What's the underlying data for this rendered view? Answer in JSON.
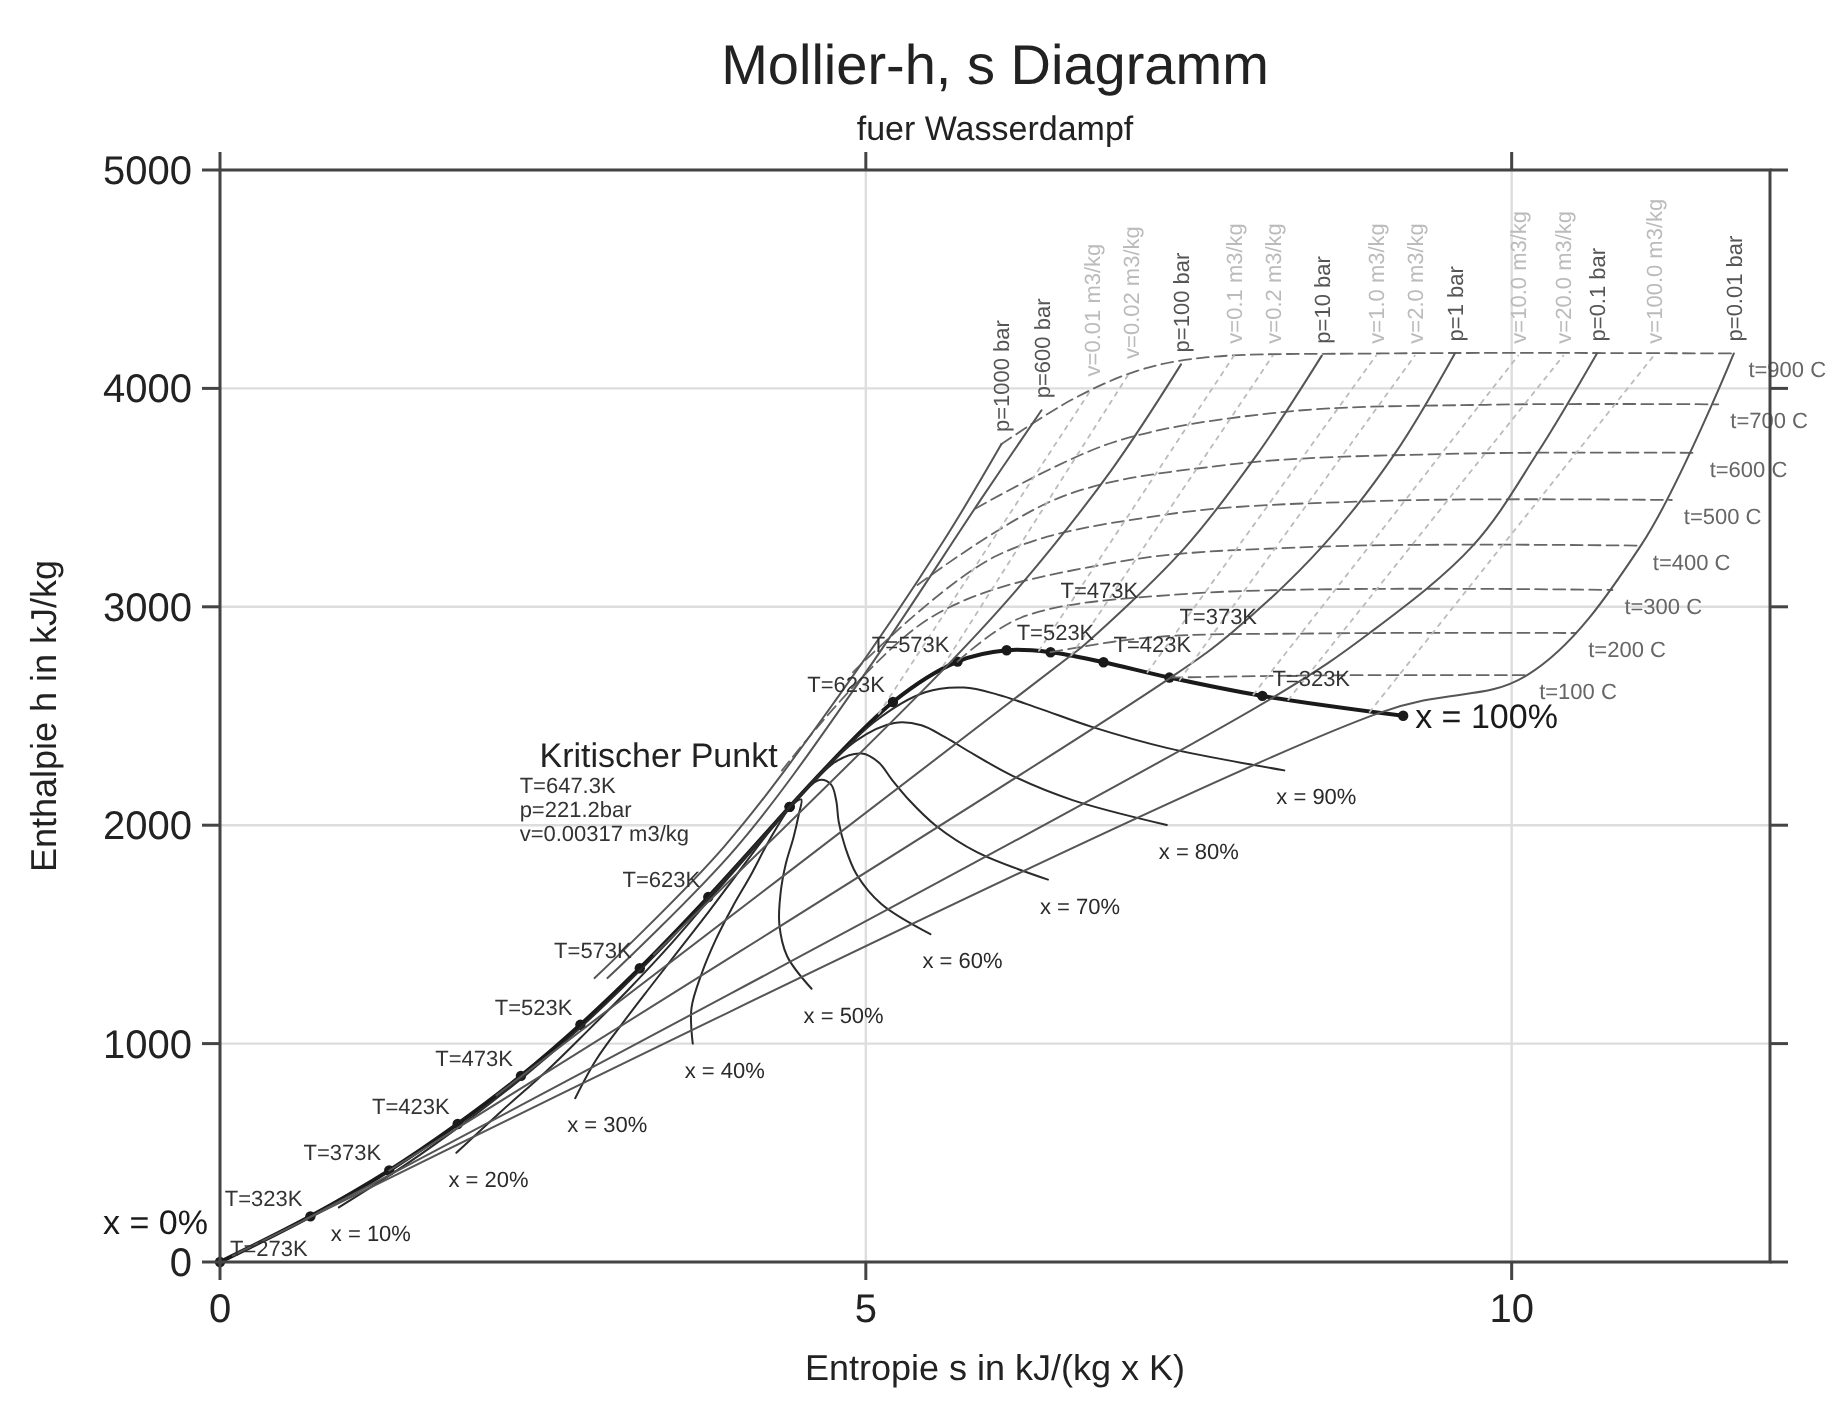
{
  "chart_data": {
    "type": "line",
    "title": "Mollier-h, s Diagramm",
    "subtitle": "fuer Wasserdampf",
    "xlabel": "Entropie s in kJ/(kg x K)",
    "ylabel": "Enthalpie h in kJ/kg",
    "xlim": [
      0,
      12
    ],
    "ylim": [
      0,
      5000
    ],
    "xticks": [
      0,
      5,
      10
    ],
    "yticks": [
      0,
      1000,
      2000,
      3000,
      4000,
      5000
    ],
    "grid": true,
    "annotations": [
      {
        "text": "Kritischer Punkt\nT=647.3K\np=221.2bar\nv=0.00317 m3/kg",
        "x": 4.41,
        "y": 2084
      },
      {
        "text": "T=623K",
        "x": 3.78,
        "y": 1671
      },
      {
        "text": "T=573K",
        "x": 3.25,
        "y": 1345
      },
      {
        "text": "T=523K",
        "x": 2.79,
        "y": 1086
      },
      {
        "text": "T=473K",
        "x": 2.33,
        "y": 852
      },
      {
        "text": "T=423K",
        "x": 1.84,
        "y": 632
      },
      {
        "text": "T=373K",
        "x": 1.31,
        "y": 419
      },
      {
        "text": "T=323K",
        "x": 0.7,
        "y": 209
      },
      {
        "text": "T=273K",
        "x": 0,
        "y": 0
      },
      {
        "text": "T=623K",
        "x": 5.21,
        "y": 2564
      },
      {
        "text": "T=573K",
        "x": 5.71,
        "y": 2749
      },
      {
        "text": "T=523K",
        "x": 6.09,
        "y": 2801
      },
      {
        "text": "T=473K",
        "x": 6.43,
        "y": 2792
      },
      {
        "text": "T=423K",
        "x": 6.84,
        "y": 2746
      },
      {
        "text": "T=373K",
        "x": 7.35,
        "y": 2676
      },
      {
        "text": "T=323K",
        "x": 8.07,
        "y": 2592
      }
    ],
    "series": [
      {
        "name": "x = 0%",
        "color": "#1a1a1a",
        "marker": "circle",
        "x": [
          4.41,
          3.78,
          3.25,
          2.79,
          2.33,
          1.84,
          1.31,
          0.7,
          0
        ],
        "values": [
          2084,
          1671,
          1345,
          1086,
          852,
          632,
          419,
          209,
          0
        ]
      },
      {
        "name": "x = 100%",
        "color": "#1a1a1a",
        "marker": "circle",
        "x": [
          4.41,
          5.21,
          5.71,
          6.09,
          6.43,
          6.84,
          7.35,
          8.07,
          9.16
        ],
        "values": [
          2084,
          2564,
          2749,
          2801,
          2792,
          2746,
          2676,
          2592,
          2501
        ]
      },
      {
        "name": "x = 10%",
        "color": "#2a2a2a",
        "x": [
          4.41,
          3.92,
          3.5,
          3.12,
          2.74,
          2.34,
          1.91,
          1.44,
          0.92
        ],
        "values": [
          2084,
          1760,
          1485,
          1258,
          1046,
          843,
          645,
          447,
          250
        ]
      },
      {
        "name": "x = 20%",
        "color": "#2a2a2a",
        "x": [
          4.41,
          4.07,
          3.74,
          3.45,
          3.15,
          2.84,
          2.52,
          2.17,
          1.83
        ],
        "values": [
          2084,
          1850,
          1626,
          1429,
          1240,
          1055,
          870,
          686,
          500
        ]
      },
      {
        "name": "x = 30%",
        "color": "#2a2a2a",
        "x": [
          4.41,
          4.21,
          3.99,
          3.78,
          3.56,
          3.34,
          3.12,
          2.91,
          2.75
        ],
        "values": [
          2084,
          1939,
          1766,
          1601,
          1434,
          1266,
          1096,
          924,
          750
        ]
      },
      {
        "name": "x = 40%",
        "color": "#2a2a2a",
        "x": [
          4.41,
          4.35,
          4.23,
          4.11,
          3.97,
          3.84,
          3.73,
          3.65,
          3.66
        ],
        "values": [
          2084,
          2028,
          1907,
          1772,
          1628,
          1478,
          1322,
          1162,
          1000
        ]
      },
      {
        "name": "x = 50%",
        "color": "#2a2a2a",
        "x": [
          4.41,
          4.5,
          4.48,
          4.44,
          4.38,
          4.34,
          4.33,
          4.39,
          4.58
        ],
        "values": [
          2084,
          2118,
          2047,
          1944,
          1822,
          1689,
          1548,
          1401,
          1251
        ]
      },
      {
        "name": "x = 60%",
        "color": "#2a2a2a",
        "x": [
          4.41,
          4.64,
          4.73,
          4.77,
          4.79,
          4.84,
          4.93,
          5.12,
          5.5
        ],
        "values": [
          2084,
          2207,
          2187,
          2115,
          2016,
          1900,
          1773,
          1639,
          1501
        ]
      },
      {
        "name": "x = 70%",
        "color": "#2a2a2a",
        "x": [
          4.41,
          4.78,
          4.97,
          5.1,
          5.2,
          5.34,
          5.54,
          5.86,
          6.41
        ],
        "values": [
          2084,
          2296,
          2328,
          2287,
          2210,
          2112,
          1999,
          1877,
          1751
        ]
      },
      {
        "name": "x = 80%",
        "color": "#2a2a2a",
        "x": [
          4.41,
          4.92,
          5.22,
          5.43,
          5.61,
          5.84,
          6.14,
          6.6,
          7.33
        ],
        "values": [
          2084,
          2385,
          2468,
          2458,
          2404,
          2323,
          2225,
          2115,
          2001
        ]
      },
      {
        "name": "x = 90%",
        "color": "#2a2a2a",
        "x": [
          4.41,
          5.07,
          5.46,
          5.76,
          6.02,
          6.34,
          6.75,
          7.33,
          8.24
        ],
        "values": [
          2084,
          2475,
          2609,
          2630,
          2598,
          2535,
          2450,
          2354,
          2251
        ]
      },
      {
        "name": "t=100 C",
        "color": "#666666",
        "line_style": "dashed",
        "x": [
          7.36,
          8.5,
          10.12
        ],
        "values": [
          2676,
          2686,
          2687
        ]
      },
      {
        "name": "t=200 C",
        "color": "#666666",
        "line_style": "dashed",
        "x": [
          6.43,
          7.2,
          8.5,
          10.5
        ],
        "values": [
          2792,
          2860,
          2878,
          2880
        ]
      },
      {
        "name": "t=300 C",
        "color": "#666666",
        "line_style": "dashed",
        "x": [
          5.71,
          6.2,
          7.5,
          10.78
        ],
        "values": [
          2749,
          2950,
          3060,
          3077
        ]
      },
      {
        "name": "t=400 C",
        "color": "#666666",
        "line_style": "dashed",
        "x": [
          4.35,
          5.5,
          6.9,
          8.5,
          11.0
        ],
        "values": [
          2250,
          2950,
          3200,
          3275,
          3280
        ]
      },
      {
        "name": "t=500 C",
        "color": "#666666",
        "line_style": "dashed",
        "x": [
          4.9,
          6.0,
          7.3,
          9.0,
          11.24
        ],
        "values": [
          2700,
          3230,
          3420,
          3485,
          3489
        ]
      },
      {
        "name": "t=600 C",
        "color": "#666666",
        "line_style": "dashed",
        "x": [
          5.4,
          6.5,
          7.8,
          9.5,
          11.44
        ],
        "values": [
          3100,
          3500,
          3650,
          3700,
          3705
        ]
      },
      {
        "name": "t=700 C",
        "color": "#666666",
        "line_style": "dashed",
        "x": [
          5.85,
          6.9,
          8.2,
          9.8,
          11.6
        ],
        "values": [
          3450,
          3750,
          3890,
          3925,
          3927
        ]
      },
      {
        "name": "t=900 C",
        "color": "#666666",
        "line_style": "dashed",
        "x": [
          6.05,
          6.6,
          7.1,
          7.6,
          9.0,
          11.74
        ],
        "values": [
          3745,
          3950,
          4080,
          4140,
          4160,
          4160
        ]
      },
      {
        "name": "p=1000 bar",
        "color": "#555555",
        "x": [
          2.9,
          3.9,
          4.8,
          5.6,
          6.05
        ],
        "values": [
          1300,
          1900,
          2600,
          3300,
          3745
        ]
      },
      {
        "name": "p=600 bar",
        "color": "#555555",
        "x": [
          3.0,
          4.0,
          5.0,
          5.9,
          6.36
        ],
        "values": [
          1300,
          1900,
          2700,
          3500,
          3900
        ]
      },
      {
        "name": "p=100 bar",
        "color": "#555555",
        "x": [
          3.36,
          5.62,
          6.2,
          6.9,
          7.44
        ],
        "values": [
          1408,
          2725,
          3100,
          3625,
          4110
        ]
      },
      {
        "name": "p=10 bar",
        "color": "#555555",
        "x": [
          2.14,
          6.59,
          6.7,
          7.46,
          8.03,
          8.53
        ],
        "values": [
          763,
          2778,
          2830,
          3264,
          3698,
          4150
        ]
      },
      {
        "name": "p=1 bar",
        "color": "#555555",
        "x": [
          1.31,
          7.36,
          7.83,
          8.54,
          9.1,
          9.56
        ],
        "values": [
          419,
          2676,
          2880,
          3280,
          3705,
          4160
        ]
      },
      {
        "name": "p=0.1 bar",
        "color": "#555555",
        "x": [
          0.65,
          8.15,
          8.9,
          9.7,
          10.2,
          10.66
        ],
        "values": [
          192,
          2584,
          2880,
          3280,
          3705,
          4160
        ]
      },
      {
        "name": "p=0.01 bar",
        "color": "#555555",
        "x": [
          0.1,
          8.97,
          10.12,
          11.0,
          11.72
        ],
        "values": [
          29,
          2513,
          2687,
          3280,
          4160
        ]
      },
      {
        "name": "v=0.01 m3/kg",
        "color": "#bbbbbb",
        "line_style": "dotted",
        "x": [
          5.1,
          6.75
        ],
        "values": [
          2510,
          4000
        ]
      },
      {
        "name": "v=0.02 m3/kg",
        "color": "#bbbbbb",
        "line_style": "dotted",
        "x": [
          5.6,
          7.05
        ],
        "values": [
          2730,
          4080
        ]
      },
      {
        "name": "v=0.1 m3/kg",
        "color": "#bbbbbb",
        "line_style": "dotted",
        "x": [
          6.34,
          7.85
        ],
        "values": [
          2799,
          4150
        ]
      },
      {
        "name": "v=0.2 m3/kg",
        "color": "#bbbbbb",
        "line_style": "dotted",
        "x": [
          6.59,
          8.15
        ],
        "values": [
          2778,
          4150
        ]
      },
      {
        "name": "v=1.0 m3/kg",
        "color": "#bbbbbb",
        "line_style": "dotted",
        "x": [
          7.18,
          8.95
        ],
        "values": [
          2700,
          4150
        ]
      },
      {
        "name": "v=2.0 m3/kg",
        "color": "#bbbbbb",
        "line_style": "dotted",
        "x": [
          7.43,
          9.25
        ],
        "values": [
          2665,
          4150
        ]
      },
      {
        "name": "v=10.0 m3/kg",
        "color": "#bbbbbb",
        "line_style": "dotted",
        "x": [
          8.0,
          10.05
        ],
        "values": [
          2598,
          4150
        ]
      },
      {
        "name": "v=20.0 m3/kg",
        "color": "#bbbbbb",
        "line_style": "dotted",
        "x": [
          8.27,
          10.4
        ],
        "values": [
          2574,
          4150
        ]
      },
      {
        "name": "v=100.0 m3/kg",
        "color": "#bbbbbb",
        "line_style": "dotted",
        "x": [
          8.9,
          11.1
        ],
        "values": [
          2518,
          4150
        ]
      }
    ]
  }
}
